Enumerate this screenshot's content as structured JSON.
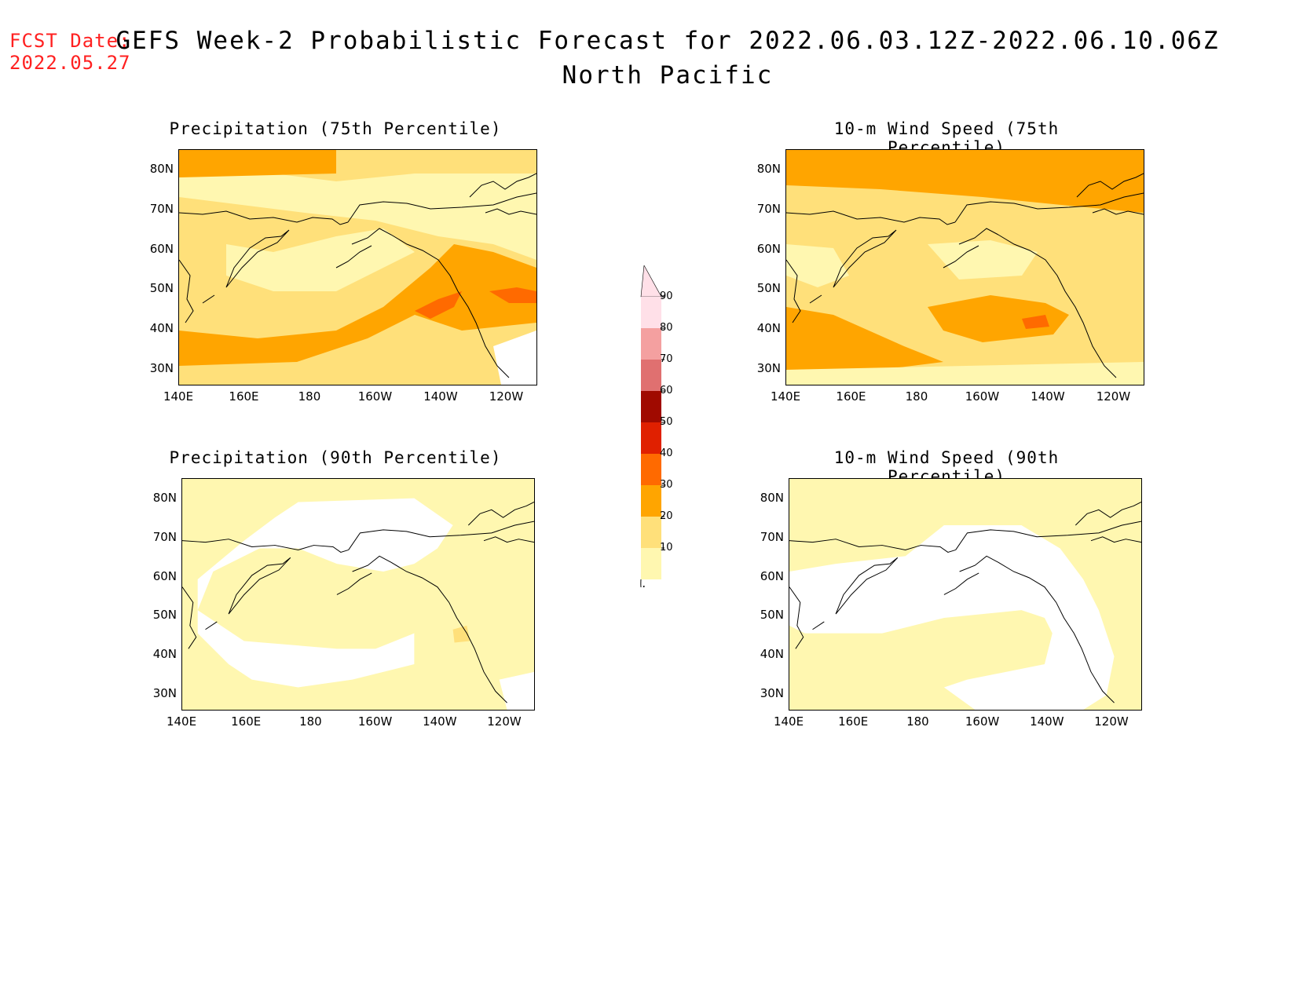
{
  "header": {
    "fcst_line1": "FCST Date:",
    "fcst_line2": "2022.05.27",
    "title_line1": "GEFS Week-2 Probabilistic Forecast for 2022.06.03.12Z-2022.06.10.06Z",
    "title_line2": "North Pacific"
  },
  "panels": [
    {
      "title": "Precipitation (75th Percentile)"
    },
    {
      "title": "10-m Wind Speed (75th Percentile)"
    },
    {
      "title": "Precipitation (90th Percentile)"
    },
    {
      "title": "10-m Wind Speed (90th Percentile)"
    }
  ],
  "axes": {
    "lat_labels": [
      "80N",
      "70N",
      "60N",
      "50N",
      "40N",
      "30N"
    ],
    "lon_labels": [
      "140E",
      "160E",
      "180",
      "160W",
      "140W",
      "120W"
    ]
  },
  "colorbar": {
    "levels": [
      "10",
      "20",
      "30",
      "40",
      "50",
      "60",
      "70",
      "80",
      "90"
    ],
    "colors": [
      "#fff7b0",
      "#ffe07a",
      "#ffa500",
      "#ff6a00",
      "#e02000",
      "#a00a00",
      "#e07070",
      "#f4a0a0",
      "#ffe0e8"
    ]
  }
}
